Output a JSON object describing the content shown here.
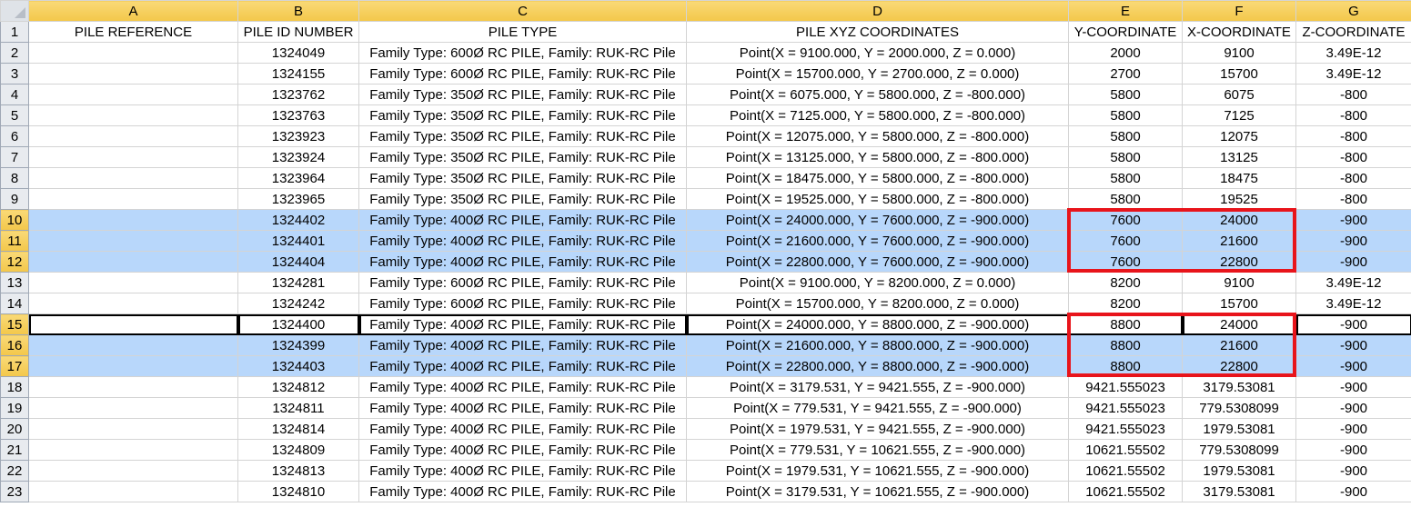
{
  "columns": [
    {
      "label": "A"
    },
    {
      "label": "B"
    },
    {
      "label": "C"
    },
    {
      "label": "D"
    },
    {
      "label": "E"
    },
    {
      "label": "F"
    },
    {
      "label": "G"
    }
  ],
  "rows": [
    {
      "n": "1",
      "cells": [
        "PILE REFERENCE",
        "PILE ID NUMBER",
        "PILE TYPE",
        "PILE XYZ COORDINATES",
        "Y-COORDINATE",
        "X-COORDINATE",
        "Z-COORDINATE"
      ]
    },
    {
      "n": "2",
      "cells": [
        "",
        "1324049",
        "Family Type: 600Ø RC PILE, Family: RUK-RC Pile",
        "Point(X = 9100.000, Y = 2000.000, Z = 0.000)",
        "2000",
        "9100",
        "3.49E-12"
      ]
    },
    {
      "n": "3",
      "cells": [
        "",
        "1324155",
        "Family Type: 600Ø RC PILE, Family: RUK-RC Pile",
        "Point(X = 15700.000, Y = 2700.000, Z = 0.000)",
        "2700",
        "15700",
        "3.49E-12"
      ]
    },
    {
      "n": "4",
      "cells": [
        "",
        "1323762",
        "Family Type: 350Ø RC PILE, Family: RUK-RC Pile",
        "Point(X = 6075.000, Y = 5800.000, Z = -800.000)",
        "5800",
        "6075",
        "-800"
      ]
    },
    {
      "n": "5",
      "cells": [
        "",
        "1323763",
        "Family Type: 350Ø RC PILE, Family: RUK-RC Pile",
        "Point(X = 7125.000, Y = 5800.000, Z = -800.000)",
        "5800",
        "7125",
        "-800"
      ]
    },
    {
      "n": "6",
      "cells": [
        "",
        "1323923",
        "Family Type: 350Ø RC PILE, Family: RUK-RC Pile",
        "Point(X = 12075.000, Y = 5800.000, Z = -800.000)",
        "5800",
        "12075",
        "-800"
      ]
    },
    {
      "n": "7",
      "cells": [
        "",
        "1323924",
        "Family Type: 350Ø RC PILE, Family: RUK-RC Pile",
        "Point(X = 13125.000, Y = 5800.000, Z = -800.000)",
        "5800",
        "13125",
        "-800"
      ]
    },
    {
      "n": "8",
      "cells": [
        "",
        "1323964",
        "Family Type: 350Ø RC PILE, Family: RUK-RC Pile",
        "Point(X = 18475.000, Y = 5800.000, Z = -800.000)",
        "5800",
        "18475",
        "-800"
      ]
    },
    {
      "n": "9",
      "cells": [
        "",
        "1323965",
        "Family Type: 350Ø RC PILE, Family: RUK-RC Pile",
        "Point(X = 19525.000, Y = 5800.000, Z = -800.000)",
        "5800",
        "19525",
        "-800"
      ]
    },
    {
      "n": "10",
      "sel": true,
      "cells": [
        "",
        "1324402",
        "Family Type: 400Ø RC PILE, Family: RUK-RC Pile",
        "Point(X = 24000.000, Y = 7600.000, Z = -900.000)",
        "7600",
        "24000",
        "-900"
      ]
    },
    {
      "n": "11",
      "sel": true,
      "cells": [
        "",
        "1324401",
        "Family Type: 400Ø RC PILE, Family: RUK-RC Pile",
        "Point(X = 21600.000, Y = 7600.000, Z = -900.000)",
        "7600",
        "21600",
        "-900"
      ]
    },
    {
      "n": "12",
      "sel": true,
      "cells": [
        "",
        "1324404",
        "Family Type: 400Ø RC PILE, Family: RUK-RC Pile",
        "Point(X = 22800.000, Y = 7600.000, Z = -900.000)",
        "7600",
        "22800",
        "-900"
      ]
    },
    {
      "n": "13",
      "cells": [
        "",
        "1324281",
        "Family Type: 600Ø RC PILE, Family: RUK-RC Pile",
        "Point(X = 9100.000, Y = 8200.000, Z = 0.000)",
        "8200",
        "9100",
        "3.49E-12"
      ]
    },
    {
      "n": "14",
      "cells": [
        "",
        "1324242",
        "Family Type: 600Ø RC PILE, Family: RUK-RC Pile",
        "Point(X = 15700.000, Y = 8200.000, Z = 0.000)",
        "8200",
        "15700",
        "3.49E-12"
      ]
    },
    {
      "n": "15",
      "sel": true,
      "cells": [
        "",
        "1324400",
        "Family Type: 400Ø RC PILE, Family: RUK-RC Pile",
        "Point(X = 24000.000, Y = 8800.000, Z = -900.000)",
        "8800",
        "24000",
        "-900"
      ]
    },
    {
      "n": "16",
      "sel": true,
      "cells": [
        "",
        "1324399",
        "Family Type: 400Ø RC PILE, Family: RUK-RC Pile",
        "Point(X = 21600.000, Y = 8800.000, Z = -900.000)",
        "8800",
        "21600",
        "-900"
      ]
    },
    {
      "n": "17",
      "sel": true,
      "cells": [
        "",
        "1324403",
        "Family Type: 400Ø RC PILE, Family: RUK-RC Pile",
        "Point(X = 22800.000, Y = 8800.000, Z = -900.000)",
        "8800",
        "22800",
        "-900"
      ]
    },
    {
      "n": "18",
      "cells": [
        "",
        "1324812",
        "Family Type: 400Ø RC PILE, Family: RUK-RC Pile",
        "Point(X = 3179.531, Y = 9421.555, Z = -900.000)",
        "9421.555023",
        "3179.53081",
        "-900"
      ]
    },
    {
      "n": "19",
      "cells": [
        "",
        "1324811",
        "Family Type: 400Ø RC PILE, Family: RUK-RC Pile",
        "Point(X = 779.531, Y = 9421.555, Z = -900.000)",
        "9421.555023",
        "779.5308099",
        "-900"
      ]
    },
    {
      "n": "20",
      "cells": [
        "",
        "1324814",
        "Family Type: 400Ø RC PILE, Family: RUK-RC Pile",
        "Point(X = 1979.531, Y = 9421.555, Z = -900.000)",
        "9421.555023",
        "1979.53081",
        "-900"
      ]
    },
    {
      "n": "21",
      "cells": [
        "",
        "1324809",
        "Family Type: 400Ø RC PILE, Family: RUK-RC Pile",
        "Point(X = 779.531, Y = 10621.555, Z = -900.000)",
        "10621.55502",
        "779.5308099",
        "-900"
      ]
    },
    {
      "n": "22",
      "cells": [
        "",
        "1324813",
        "Family Type: 400Ø RC PILE, Family: RUK-RC Pile",
        "Point(X = 1979.531, Y = 10621.555, Z = -900.000)",
        "10621.55502",
        "1979.53081",
        "-900"
      ]
    },
    {
      "n": "23",
      "cells": [
        "",
        "1324810",
        "Family Type: 400Ø RC PILE, Family: RUK-RC Pile",
        "Point(X = 3179.531, Y = 10621.555, Z = -900.000)",
        "10621.55502",
        "3179.53081",
        "-900"
      ]
    }
  ],
  "active_cell": "A15",
  "highlight_color": "#e8141b",
  "selection_color": "#b8d7fb"
}
